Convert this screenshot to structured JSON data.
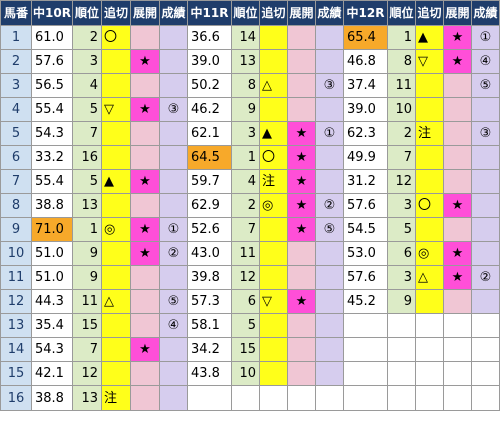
{
  "headers": {
    "horse_no": "馬番",
    "races": [
      {
        "title": "中10R",
        "rank": "順位",
        "oi": "追切",
        "tenkai": "展開",
        "seiseki": "成績"
      },
      {
        "title": "中11R",
        "rank": "順位",
        "oi": "追切",
        "tenkai": "展開",
        "seiseki": "成績"
      },
      {
        "title": "中12R",
        "rank": "順位",
        "oi": "追切",
        "tenkai": "展開",
        "seiseki": "成績"
      }
    ]
  },
  "rows": [
    {
      "no": "1",
      "r10": {
        "score": "61.0",
        "rank": "2",
        "oi": "〇",
        "tenkai": "",
        "seiseki": ""
      },
      "r11": {
        "score": "36.6",
        "rank": "14",
        "oi": "",
        "tenkai": "",
        "seiseki": ""
      },
      "r12": {
        "score": "65.4",
        "rank": "1",
        "oi": "▲",
        "tenkai": "★",
        "seiseki": "①"
      }
    },
    {
      "no": "2",
      "r10": {
        "score": "57.6",
        "rank": "3",
        "oi": "",
        "tenkai": "★",
        "seiseki": ""
      },
      "r11": {
        "score": "39.0",
        "rank": "13",
        "oi": "",
        "tenkai": "",
        "seiseki": ""
      },
      "r12": {
        "score": "46.8",
        "rank": "8",
        "oi": "▽",
        "tenkai": "★",
        "seiseki": "④"
      }
    },
    {
      "no": "3",
      "r10": {
        "score": "56.5",
        "rank": "4",
        "oi": "",
        "tenkai": "",
        "seiseki": ""
      },
      "r11": {
        "score": "50.2",
        "rank": "8",
        "oi": "△",
        "tenkai": "",
        "seiseki": "③"
      },
      "r12": {
        "score": "37.4",
        "rank": "11",
        "oi": "",
        "tenkai": "",
        "seiseki": "⑤"
      }
    },
    {
      "no": "4",
      "r10": {
        "score": "55.4",
        "rank": "5",
        "oi": "▽",
        "tenkai": "★",
        "seiseki": "③"
      },
      "r11": {
        "score": "46.2",
        "rank": "9",
        "oi": "",
        "tenkai": "",
        "seiseki": ""
      },
      "r12": {
        "score": "39.0",
        "rank": "10",
        "oi": "",
        "tenkai": "",
        "seiseki": ""
      }
    },
    {
      "no": "5",
      "r10": {
        "score": "54.3",
        "rank": "7",
        "oi": "",
        "tenkai": "",
        "seiseki": ""
      },
      "r11": {
        "score": "62.1",
        "rank": "3",
        "oi": "▲",
        "tenkai": "★",
        "seiseki": "①"
      },
      "r12": {
        "score": "62.3",
        "rank": "2",
        "oi": "注",
        "tenkai": "",
        "seiseki": "③"
      }
    },
    {
      "no": "6",
      "r10": {
        "score": "33.2",
        "rank": "16",
        "oi": "",
        "tenkai": "",
        "seiseki": ""
      },
      "r11": {
        "score": "64.5",
        "rank": "1",
        "oi": "〇",
        "tenkai": "★",
        "seiseki": ""
      },
      "r12": {
        "score": "49.9",
        "rank": "7",
        "oi": "",
        "tenkai": "",
        "seiseki": ""
      }
    },
    {
      "no": "7",
      "r10": {
        "score": "55.4",
        "rank": "5",
        "oi": "▲",
        "tenkai": "★",
        "seiseki": ""
      },
      "r11": {
        "score": "59.7",
        "rank": "4",
        "oi": "注",
        "tenkai": "★",
        "seiseki": ""
      },
      "r12": {
        "score": "31.2",
        "rank": "12",
        "oi": "",
        "tenkai": "",
        "seiseki": ""
      }
    },
    {
      "no": "8",
      "r10": {
        "score": "38.8",
        "rank": "13",
        "oi": "",
        "tenkai": "",
        "seiseki": ""
      },
      "r11": {
        "score": "62.9",
        "rank": "2",
        "oi": "◎",
        "tenkai": "★",
        "seiseki": "②"
      },
      "r12": {
        "score": "57.6",
        "rank": "3",
        "oi": "〇",
        "tenkai": "★",
        "seiseki": ""
      }
    },
    {
      "no": "9",
      "r10": {
        "score": "71.0",
        "rank": "1",
        "oi": "◎",
        "tenkai": "★",
        "seiseki": "①"
      },
      "r11": {
        "score": "52.6",
        "rank": "7",
        "oi": "",
        "tenkai": "★",
        "seiseki": "⑤"
      },
      "r12": {
        "score": "54.5",
        "rank": "5",
        "oi": "",
        "tenkai": "",
        "seiseki": ""
      }
    },
    {
      "no": "10",
      "r10": {
        "score": "51.0",
        "rank": "9",
        "oi": "",
        "tenkai": "★",
        "seiseki": "②"
      },
      "r11": {
        "score": "43.0",
        "rank": "11",
        "oi": "",
        "tenkai": "",
        "seiseki": ""
      },
      "r12": {
        "score": "53.0",
        "rank": "6",
        "oi": "◎",
        "tenkai": "★",
        "seiseki": ""
      }
    },
    {
      "no": "11",
      "r10": {
        "score": "51.0",
        "rank": "9",
        "oi": "",
        "tenkai": "",
        "seiseki": ""
      },
      "r11": {
        "score": "39.8",
        "rank": "12",
        "oi": "",
        "tenkai": "",
        "seiseki": ""
      },
      "r12": {
        "score": "57.6",
        "rank": "3",
        "oi": "△",
        "tenkai": "★",
        "seiseki": "②"
      }
    },
    {
      "no": "12",
      "r10": {
        "score": "44.3",
        "rank": "11",
        "oi": "△",
        "tenkai": "",
        "seiseki": "⑤"
      },
      "r11": {
        "score": "57.3",
        "rank": "6",
        "oi": "▽",
        "tenkai": "★",
        "seiseki": ""
      },
      "r12": {
        "score": "45.2",
        "rank": "9",
        "oi": "",
        "tenkai": "",
        "seiseki": ""
      }
    },
    {
      "no": "13",
      "r10": {
        "score": "35.4",
        "rank": "15",
        "oi": "",
        "tenkai": "",
        "seiseki": "④"
      },
      "r11": {
        "score": "58.1",
        "rank": "5",
        "oi": "",
        "tenkai": "",
        "seiseki": ""
      },
      "r12": null
    },
    {
      "no": "14",
      "r10": {
        "score": "54.3",
        "rank": "7",
        "oi": "",
        "tenkai": "★",
        "seiseki": ""
      },
      "r11": {
        "score": "34.2",
        "rank": "15",
        "oi": "",
        "tenkai": "",
        "seiseki": ""
      },
      "r12": null
    },
    {
      "no": "15",
      "r10": {
        "score": "42.1",
        "rank": "12",
        "oi": "",
        "tenkai": "",
        "seiseki": ""
      },
      "r11": {
        "score": "43.8",
        "rank": "10",
        "oi": "",
        "tenkai": "",
        "seiseki": ""
      },
      "r12": null
    },
    {
      "no": "16",
      "r10": {
        "score": "38.8",
        "rank": "13",
        "oi": "注",
        "tenkai": "",
        "seiseki": ""
      },
      "r11": null,
      "r12": null
    }
  ],
  "highlights": {
    "top_score_color": "#f7a92a",
    "hot_tenkai_color": "#ff4fd8",
    "oi_color": "#ffff1a",
    "rank_color": "#dcebc6",
    "tenkai_color": "#f0c6d4",
    "seiseki_color": "#d6cdee",
    "header_color": "#1f3d6b",
    "horse_no_color": "#cfe0f1"
  }
}
